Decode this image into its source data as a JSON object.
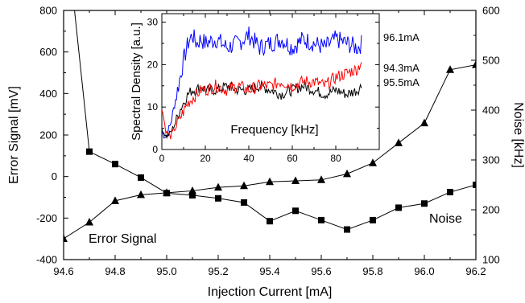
{
  "chart_data": [
    {
      "type": "line",
      "xlabel": "Injection Current [mA]",
      "ylabel_left": "Error Signal [mV]",
      "ylabel_right": "Noise [kHz]",
      "xlim": [
        94.6,
        96.2
      ],
      "ylim_left": [
        -400,
        800
      ],
      "ylim_right": [
        100,
        600
      ],
      "x_ticks": [
        "94.6",
        "94.8",
        "95.0",
        "95.2",
        "95.4",
        "95.6",
        "95.8",
        "96.0",
        "96.2"
      ],
      "y_left_ticks": [
        "-400",
        "-200",
        "0",
        "200",
        "400",
        "600",
        "800"
      ],
      "y_right_ticks": [
        "100",
        "200",
        "300",
        "400",
        "500",
        "600"
      ],
      "series": [
        {
          "name": "Error Signal",
          "axis": "left",
          "marker": "square",
          "x": [
            94.6,
            94.7,
            94.8,
            94.9,
            95.0,
            95.1,
            95.2,
            95.3,
            95.4,
            95.5,
            95.6,
            95.7,
            95.8,
            95.9,
            96.0,
            96.1,
            96.2
          ],
          "y": [
            1300,
            120,
            60,
            -5,
            -80,
            -90,
            -105,
            -125,
            -215,
            -165,
            -210,
            -255,
            -210,
            -150,
            -130,
            -75,
            -40
          ]
        },
        {
          "name": "Noise",
          "axis": "right",
          "marker": "triangle",
          "x": [
            94.6,
            94.7,
            94.8,
            94.9,
            95.0,
            95.1,
            95.2,
            95.3,
            95.4,
            95.5,
            95.6,
            95.7,
            95.8,
            95.9,
            96.0,
            96.1,
            96.2
          ],
          "y": [
            142,
            175,
            218,
            230,
            234,
            238,
            245,
            248,
            256,
            258,
            260,
            272,
            294,
            334,
            374,
            481,
            491
          ]
        }
      ],
      "annotations": [
        "Error Signal",
        "Noise"
      ]
    },
    {
      "type": "line",
      "role": "inset",
      "xlabel": "Frequency [kHz]",
      "ylabel": "Spectral Density [a.u.]",
      "xlim": [
        0,
        100
      ],
      "ylim": [
        0,
        32
      ],
      "x_ticks": [
        "0",
        "20",
        "40",
        "60",
        "80"
      ],
      "y_ticks": [
        "0",
        "10",
        "20",
        "30"
      ],
      "series": [
        {
          "name": "96.1mA",
          "color": "#0000ff",
          "x": [
            0,
            2,
            4,
            6,
            8,
            10,
            12,
            14,
            16,
            18,
            20,
            25,
            30,
            35,
            40,
            45,
            50,
            55,
            60,
            65,
            70,
            75,
            80,
            85,
            90,
            92
          ],
          "y": [
            4,
            3,
            6,
            11,
            16,
            21,
            25,
            27,
            25,
            26,
            25,
            26,
            24,
            25,
            27,
            24,
            25,
            26,
            24,
            26,
            25,
            24,
            26,
            25,
            24,
            25
          ]
        },
        {
          "name": "94.3mA",
          "color": "#ff0000",
          "x": [
            0,
            2,
            4,
            6,
            8,
            10,
            12,
            14,
            16,
            18,
            20,
            25,
            30,
            35,
            40,
            45,
            50,
            55,
            60,
            65,
            70,
            75,
            80,
            85,
            90,
            92
          ],
          "y": [
            10,
            4,
            3,
            5,
            7,
            9,
            11,
            12,
            13,
            14,
            14,
            15,
            14,
            15,
            14,
            15,
            15,
            16,
            15,
            16,
            16,
            15,
            17,
            18,
            19,
            21
          ]
        },
        {
          "name": "95.5mA",
          "color": "#000000",
          "x": [
            0,
            2,
            4,
            6,
            8,
            10,
            12,
            14,
            16,
            18,
            20,
            25,
            30,
            35,
            40,
            45,
            50,
            55,
            60,
            65,
            70,
            75,
            80,
            85,
            90,
            92
          ],
          "y": [
            5,
            3,
            4,
            6,
            9,
            11,
            13,
            14,
            14,
            15,
            14,
            14,
            15,
            14,
            14,
            15,
            14,
            13,
            14,
            15,
            14,
            13,
            14,
            13,
            14,
            15
          ]
        }
      ]
    }
  ]
}
